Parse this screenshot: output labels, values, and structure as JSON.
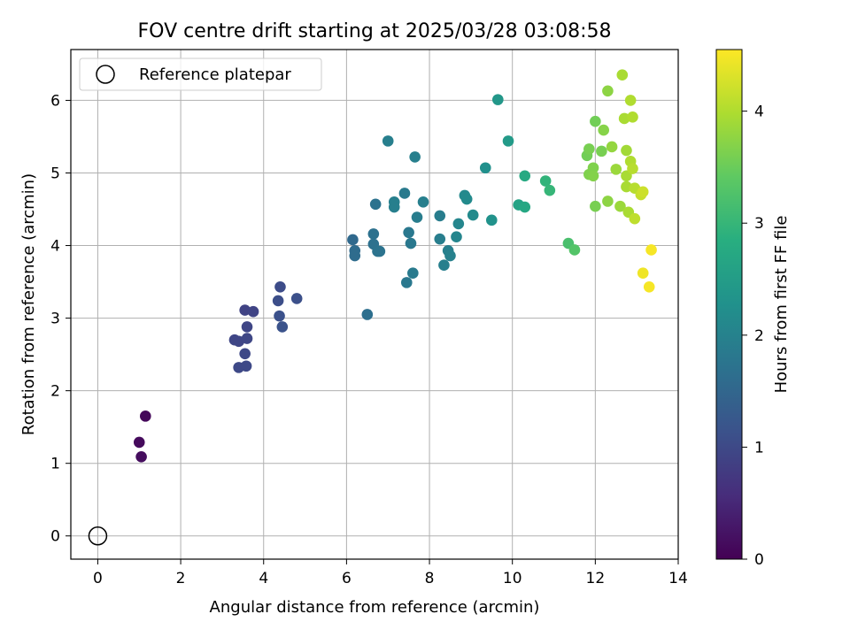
{
  "chart_data": {
    "type": "scatter",
    "title": "FOV centre drift starting at 2025/03/28 03:08:58",
    "xlabel": "Angular distance from reference (arcmin)",
    "ylabel": "Rotation from reference (arcmin)",
    "xlim": [
      -0.65,
      14
    ],
    "ylim": [
      -0.32,
      6.7
    ],
    "xticks": [
      0,
      2,
      4,
      6,
      8,
      10,
      12,
      14
    ],
    "yticks": [
      0,
      1,
      2,
      3,
      4,
      5,
      6
    ],
    "grid": true,
    "legend": {
      "position": "top-left",
      "entries": [
        {
          "label": "Reference platepar",
          "marker": "open-circle"
        }
      ]
    },
    "reference_point": {
      "x": 0,
      "y": 0
    },
    "colorbar": {
      "label": "Hours from first FF file",
      "colormap": "viridis",
      "range": [
        0,
        4.55
      ],
      "ticks": [
        0,
        1,
        2,
        3,
        4
      ]
    },
    "series": [
      {
        "points": [
          {
            "x": 1.15,
            "y": 1.65,
            "c": 0.08
          },
          {
            "x": 1.0,
            "y": 1.29,
            "c": 0.12
          },
          {
            "x": 1.05,
            "y": 1.09,
            "c": 0.15
          },
          {
            "x": 3.55,
            "y": 3.11,
            "c": 0.9
          },
          {
            "x": 3.75,
            "y": 3.09,
            "c": 0.92
          },
          {
            "x": 3.3,
            "y": 2.7,
            "c": 0.95
          },
          {
            "x": 3.4,
            "y": 2.68,
            "c": 0.95
          },
          {
            "x": 3.6,
            "y": 2.72,
            "c": 0.97
          },
          {
            "x": 3.6,
            "y": 2.88,
            "c": 0.95
          },
          {
            "x": 3.55,
            "y": 2.51,
            "c": 0.98
          },
          {
            "x": 3.4,
            "y": 2.32,
            "c": 1.0
          },
          {
            "x": 3.58,
            "y": 2.34,
            "c": 1.0
          },
          {
            "x": 4.4,
            "y": 3.43,
            "c": 1.05
          },
          {
            "x": 4.35,
            "y": 3.24,
            "c": 1.08
          },
          {
            "x": 4.8,
            "y": 3.27,
            "c": 1.1
          },
          {
            "x": 4.38,
            "y": 3.03,
            "c": 1.12
          },
          {
            "x": 4.45,
            "y": 2.88,
            "c": 1.15
          },
          {
            "x": 6.15,
            "y": 4.08,
            "c": 1.55
          },
          {
            "x": 6.2,
            "y": 3.93,
            "c": 1.58
          },
          {
            "x": 6.2,
            "y": 3.86,
            "c": 1.6
          },
          {
            "x": 6.5,
            "y": 3.05,
            "c": 1.65
          },
          {
            "x": 6.65,
            "y": 4.16,
            "c": 1.68
          },
          {
            "x": 6.65,
            "y": 4.02,
            "c": 1.68
          },
          {
            "x": 6.7,
            "y": 4.57,
            "c": 1.7
          },
          {
            "x": 6.75,
            "y": 3.92,
            "c": 1.72
          },
          {
            "x": 6.8,
            "y": 3.92,
            "c": 1.72
          },
          {
            "x": 7.0,
            "y": 5.44,
            "c": 1.95
          },
          {
            "x": 7.15,
            "y": 4.6,
            "c": 1.95
          },
          {
            "x": 7.15,
            "y": 4.53,
            "c": 1.95
          },
          {
            "x": 7.4,
            "y": 4.72,
            "c": 1.85
          },
          {
            "x": 7.5,
            "y": 4.18,
            "c": 1.82
          },
          {
            "x": 7.55,
            "y": 4.03,
            "c": 1.82
          },
          {
            "x": 7.6,
            "y": 3.62,
            "c": 1.85
          },
          {
            "x": 7.45,
            "y": 3.49,
            "c": 1.82
          },
          {
            "x": 7.7,
            "y": 4.39,
            "c": 1.9
          },
          {
            "x": 7.65,
            "y": 5.22,
            "c": 1.95
          },
          {
            "x": 7.85,
            "y": 4.6,
            "c": 1.95
          },
          {
            "x": 8.25,
            "y": 4.41,
            "c": 1.9
          },
          {
            "x": 8.25,
            "y": 4.09,
            "c": 1.92
          },
          {
            "x": 8.35,
            "y": 3.73,
            "c": 1.95
          },
          {
            "x": 8.45,
            "y": 3.93,
            "c": 1.95
          },
          {
            "x": 8.5,
            "y": 3.86,
            "c": 1.98
          },
          {
            "x": 8.65,
            "y": 4.12,
            "c": 2.05
          },
          {
            "x": 8.7,
            "y": 4.3,
            "c": 2.08
          },
          {
            "x": 8.85,
            "y": 4.69,
            "c": 2.12
          },
          {
            "x": 8.9,
            "y": 4.64,
            "c": 2.15
          },
          {
            "x": 9.05,
            "y": 4.42,
            "c": 2.15
          },
          {
            "x": 9.35,
            "y": 5.07,
            "c": 2.25
          },
          {
            "x": 9.5,
            "y": 4.35,
            "c": 2.3
          },
          {
            "x": 9.65,
            "y": 6.01,
            "c": 2.4
          },
          {
            "x": 9.9,
            "y": 5.44,
            "c": 2.45
          },
          {
            "x": 10.15,
            "y": 4.56,
            "c": 2.6
          },
          {
            "x": 10.3,
            "y": 4.53,
            "c": 2.7
          },
          {
            "x": 10.3,
            "y": 4.96,
            "c": 2.75
          },
          {
            "x": 10.8,
            "y": 4.89,
            "c": 2.95
          },
          {
            "x": 10.9,
            "y": 4.76,
            "c": 3.0
          },
          {
            "x": 11.35,
            "y": 4.03,
            "c": 3.2
          },
          {
            "x": 11.5,
            "y": 3.94,
            "c": 3.3
          },
          {
            "x": 11.8,
            "y": 5.24,
            "c": 3.55
          },
          {
            "x": 11.85,
            "y": 5.33,
            "c": 3.6
          },
          {
            "x": 11.85,
            "y": 4.98,
            "c": 3.65
          },
          {
            "x": 11.95,
            "y": 5.07,
            "c": 3.65
          },
          {
            "x": 11.95,
            "y": 4.96,
            "c": 3.68
          },
          {
            "x": 12.0,
            "y": 5.71,
            "c": 3.55
          },
          {
            "x": 12.0,
            "y": 4.54,
            "c": 3.6
          },
          {
            "x": 12.15,
            "y": 5.3,
            "c": 3.6
          },
          {
            "x": 12.2,
            "y": 5.59,
            "c": 3.7
          },
          {
            "x": 12.3,
            "y": 6.13,
            "c": 3.75
          },
          {
            "x": 12.3,
            "y": 4.61,
            "c": 3.75
          },
          {
            "x": 12.4,
            "y": 5.36,
            "c": 3.8
          },
          {
            "x": 12.5,
            "y": 5.05,
            "c": 3.85
          },
          {
            "x": 12.6,
            "y": 4.54,
            "c": 3.85
          },
          {
            "x": 12.65,
            "y": 6.35,
            "c": 3.95
          },
          {
            "x": 12.7,
            "y": 5.75,
            "c": 3.95
          },
          {
            "x": 12.75,
            "y": 5.31,
            "c": 3.9
          },
          {
            "x": 12.75,
            "y": 4.96,
            "c": 3.95
          },
          {
            "x": 12.75,
            "y": 4.81,
            "c": 3.95
          },
          {
            "x": 12.8,
            "y": 4.46,
            "c": 3.95
          },
          {
            "x": 12.85,
            "y": 6.0,
            "c": 4.0
          },
          {
            "x": 12.85,
            "y": 5.16,
            "c": 4.0
          },
          {
            "x": 12.9,
            "y": 5.77,
            "c": 4.0
          },
          {
            "x": 12.9,
            "y": 5.06,
            "c": 4.05
          },
          {
            "x": 12.95,
            "y": 4.79,
            "c": 4.05
          },
          {
            "x": 12.95,
            "y": 4.37,
            "c": 4.1
          },
          {
            "x": 13.1,
            "y": 4.7,
            "c": 4.15
          },
          {
            "x": 13.15,
            "y": 4.74,
            "c": 4.2
          },
          {
            "x": 13.15,
            "y": 3.62,
            "c": 4.45
          },
          {
            "x": 13.3,
            "y": 3.43,
            "c": 4.5
          },
          {
            "x": 13.35,
            "y": 3.94,
            "c": 4.5
          }
        ]
      }
    ]
  }
}
